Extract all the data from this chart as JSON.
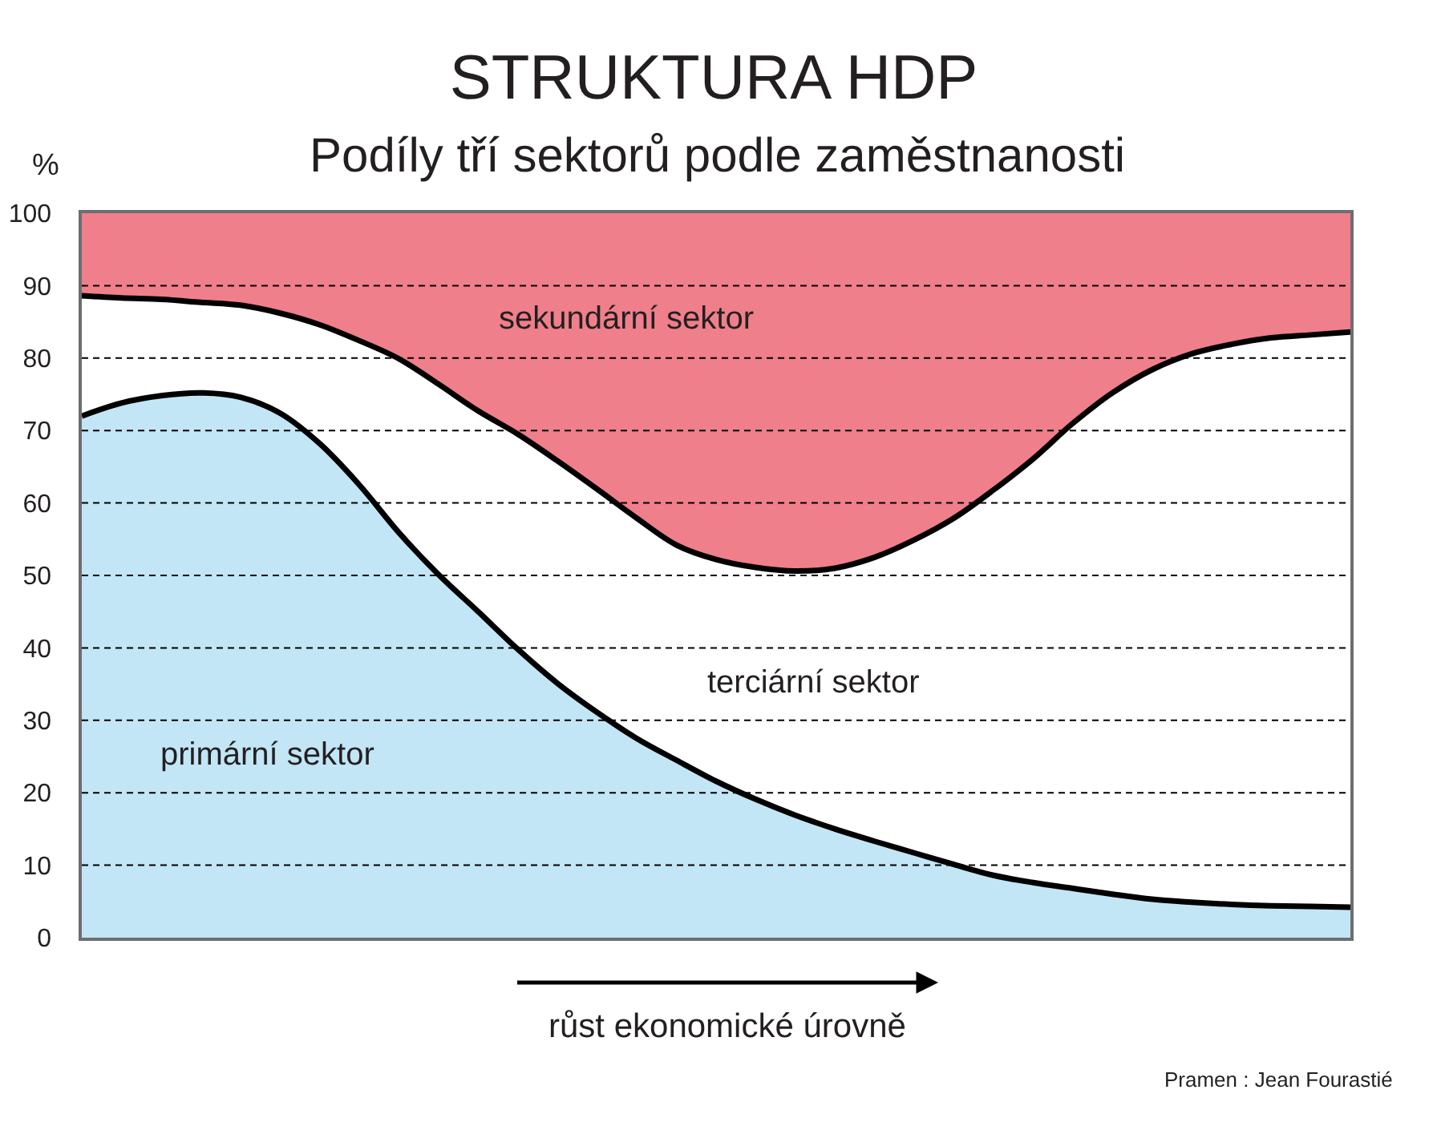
{
  "chart_data": {
    "type": "area",
    "title": "STRUKTURA HDP",
    "subtitle": "Podíly tří sektorů podle zaměstnanosti",
    "ylabel": "%",
    "xlabel": "růst ekonomické úrovně",
    "annotations": [
      "Pramen : Jean Fourastié"
    ],
    "categories": [
      null,
      null,
      null,
      null,
      null,
      null,
      null,
      null,
      null,
      null,
      null,
      null,
      null,
      null,
      null,
      null,
      null,
      null,
      null,
      null,
      null,
      null,
      null,
      null,
      null,
      null,
      null,
      null,
      null,
      null,
      null,
      null,
      null
    ],
    "stacked": true,
    "ylim": [
      0,
      100
    ],
    "yticks": [
      0,
      10,
      20,
      30,
      40,
      50,
      60,
      70,
      80,
      90,
      100
    ],
    "grid": "y",
    "tick_labels": "y",
    "series": [
      {
        "name": "primární sektor",
        "color": "#c2e6f6",
        "values": [
          72.0,
          73.8,
          74.8,
          75.2,
          74.6,
          72.4,
          68.2,
          62.5,
          55.9,
          50.1,
          45.0,
          39.8,
          35.1,
          31.1,
          27.5,
          24.5,
          21.6,
          19.1,
          16.9,
          15.0,
          13.3,
          11.7,
          10.1,
          8.6,
          7.6,
          6.8,
          6.0,
          5.3,
          4.9,
          4.6,
          4.4,
          4.3,
          4.2
        ]
      },
      {
        "name": "terciární sektor",
        "color": "#ffffff",
        "values": [
          16.6,
          14.5,
          13.3,
          12.5,
          12.7,
          13.8,
          16.4,
          19.9,
          24.0,
          26.3,
          27.7,
          29.7,
          30.7,
          30.8,
          30.4,
          29.7,
          30.6,
          32.0,
          33.7,
          36.0,
          39.2,
          43.2,
          47.8,
          53.2,
          58.5,
          64.2,
          69.2,
          73.1,
          75.7,
          77.3,
          78.4,
          78.9,
          79.4
        ]
      },
      {
        "name": "sekundární sektor",
        "color": "#ef7f8a",
        "values": [
          11.4,
          11.7,
          11.9,
          12.3,
          12.7,
          13.8,
          15.4,
          17.6,
          20.1,
          23.6,
          27.3,
          30.5,
          34.2,
          38.1,
          42.1,
          45.8,
          47.8,
          48.9,
          49.4,
          49.0,
          47.5,
          45.1,
          42.1,
          38.2,
          33.9,
          29.0,
          24.8,
          21.6,
          19.4,
          18.1,
          17.2,
          16.8,
          16.4
        ]
      }
    ]
  }
}
